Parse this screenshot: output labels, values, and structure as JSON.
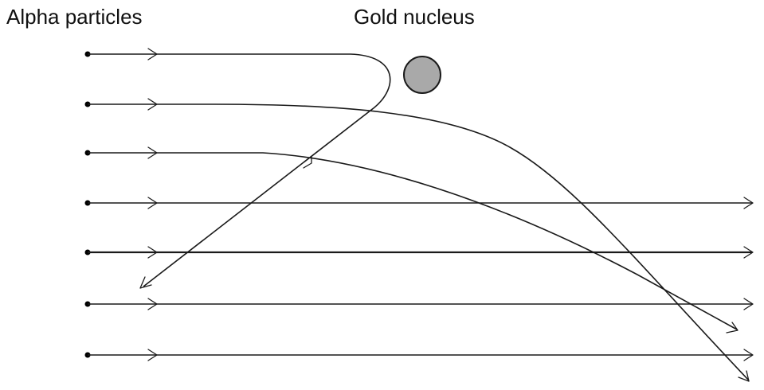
{
  "labels": {
    "alpha_particles": "Alpha particles",
    "gold_nucleus": "Gold nucleus"
  },
  "colors": {
    "nucleus_fill": "#a9a9a9",
    "line": "#1a1a1a",
    "background": "#ffffff"
  },
  "trajectories": [
    {
      "name": "trajectory-1-backscatter",
      "deflection": "back-scattered"
    },
    {
      "name": "trajectory-2-large-deflection",
      "deflection": "large"
    },
    {
      "name": "trajectory-3-medium-deflection",
      "deflection": "medium"
    },
    {
      "name": "trajectory-4-straight",
      "deflection": "none"
    },
    {
      "name": "trajectory-5-straight",
      "deflection": "none"
    },
    {
      "name": "trajectory-6-straight",
      "deflection": "none"
    },
    {
      "name": "trajectory-7-straight",
      "deflection": "none"
    }
  ]
}
